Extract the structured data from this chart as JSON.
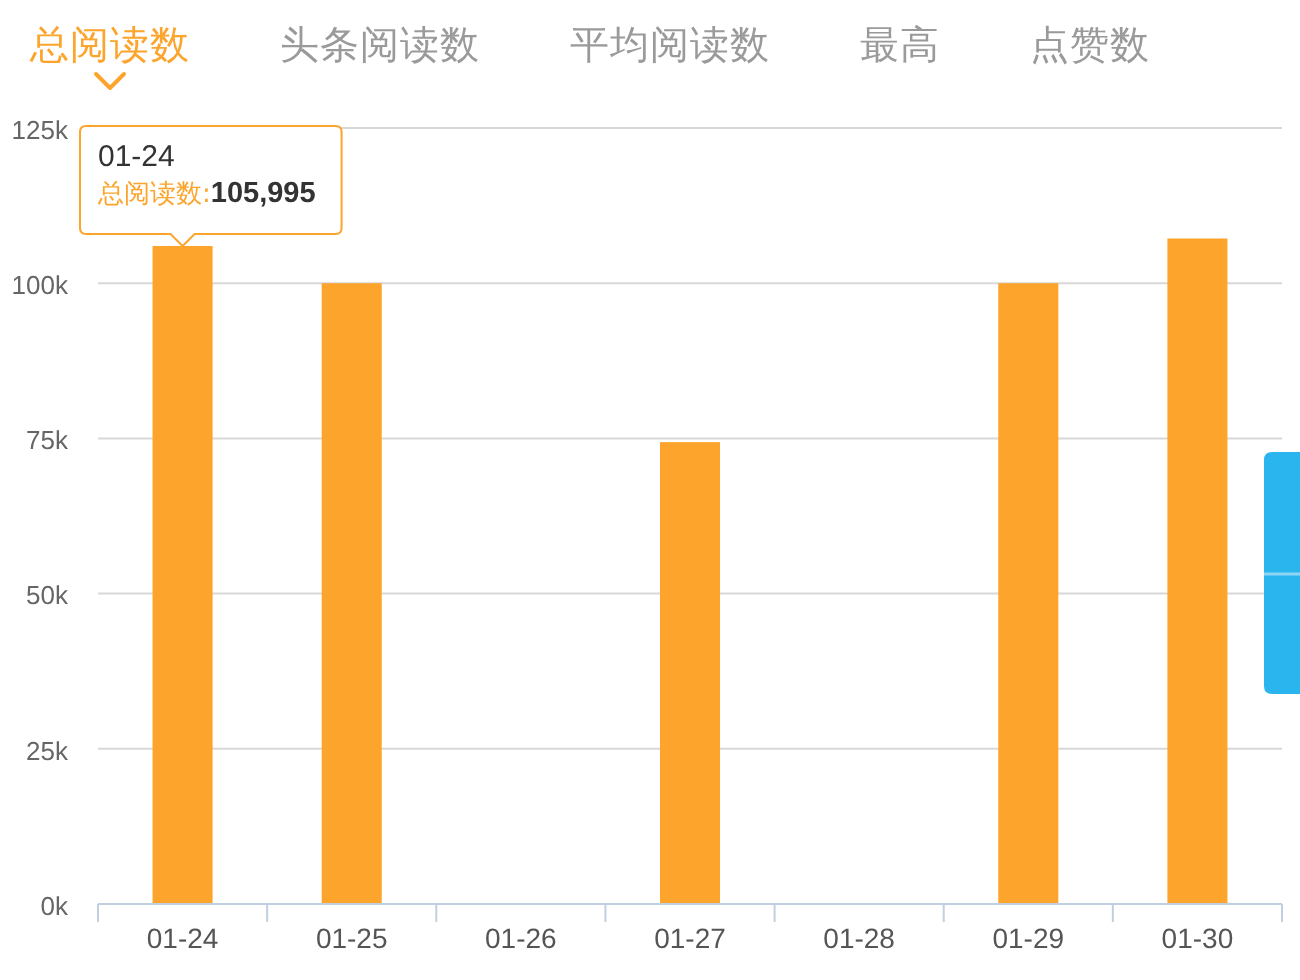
{
  "chart_data": {
    "type": "bar",
    "categories": [
      "01-24",
      "01-25",
      "01-26",
      "01-27",
      "01-28",
      "01-29",
      "01-30"
    ],
    "series": [
      {
        "name": "总阅读数",
        "color": "#fca42b",
        "values": [
          105995,
          100000,
          0,
          74400,
          0,
          100000,
          107200
        ]
      }
    ],
    "ylim": [
      0,
      125000
    ],
    "yticks": [
      {
        "value": 0,
        "label": "0k"
      },
      {
        "value": 25000,
        "label": "25k"
      },
      {
        "value": 50000,
        "label": "50k"
      },
      {
        "value": 75000,
        "label": "75k"
      },
      {
        "value": 100000,
        "label": "100k"
      },
      {
        "value": 125000,
        "label": "125k"
      }
    ],
    "grid": "y",
    "annotations": [
      "头条阅读数",
      "平均阅读数",
      "最高",
      "点赞数",
      {
        "text": "总阅读数:105,995",
        "x": "01-24",
        "y": 105995
      }
    ]
  }
}
